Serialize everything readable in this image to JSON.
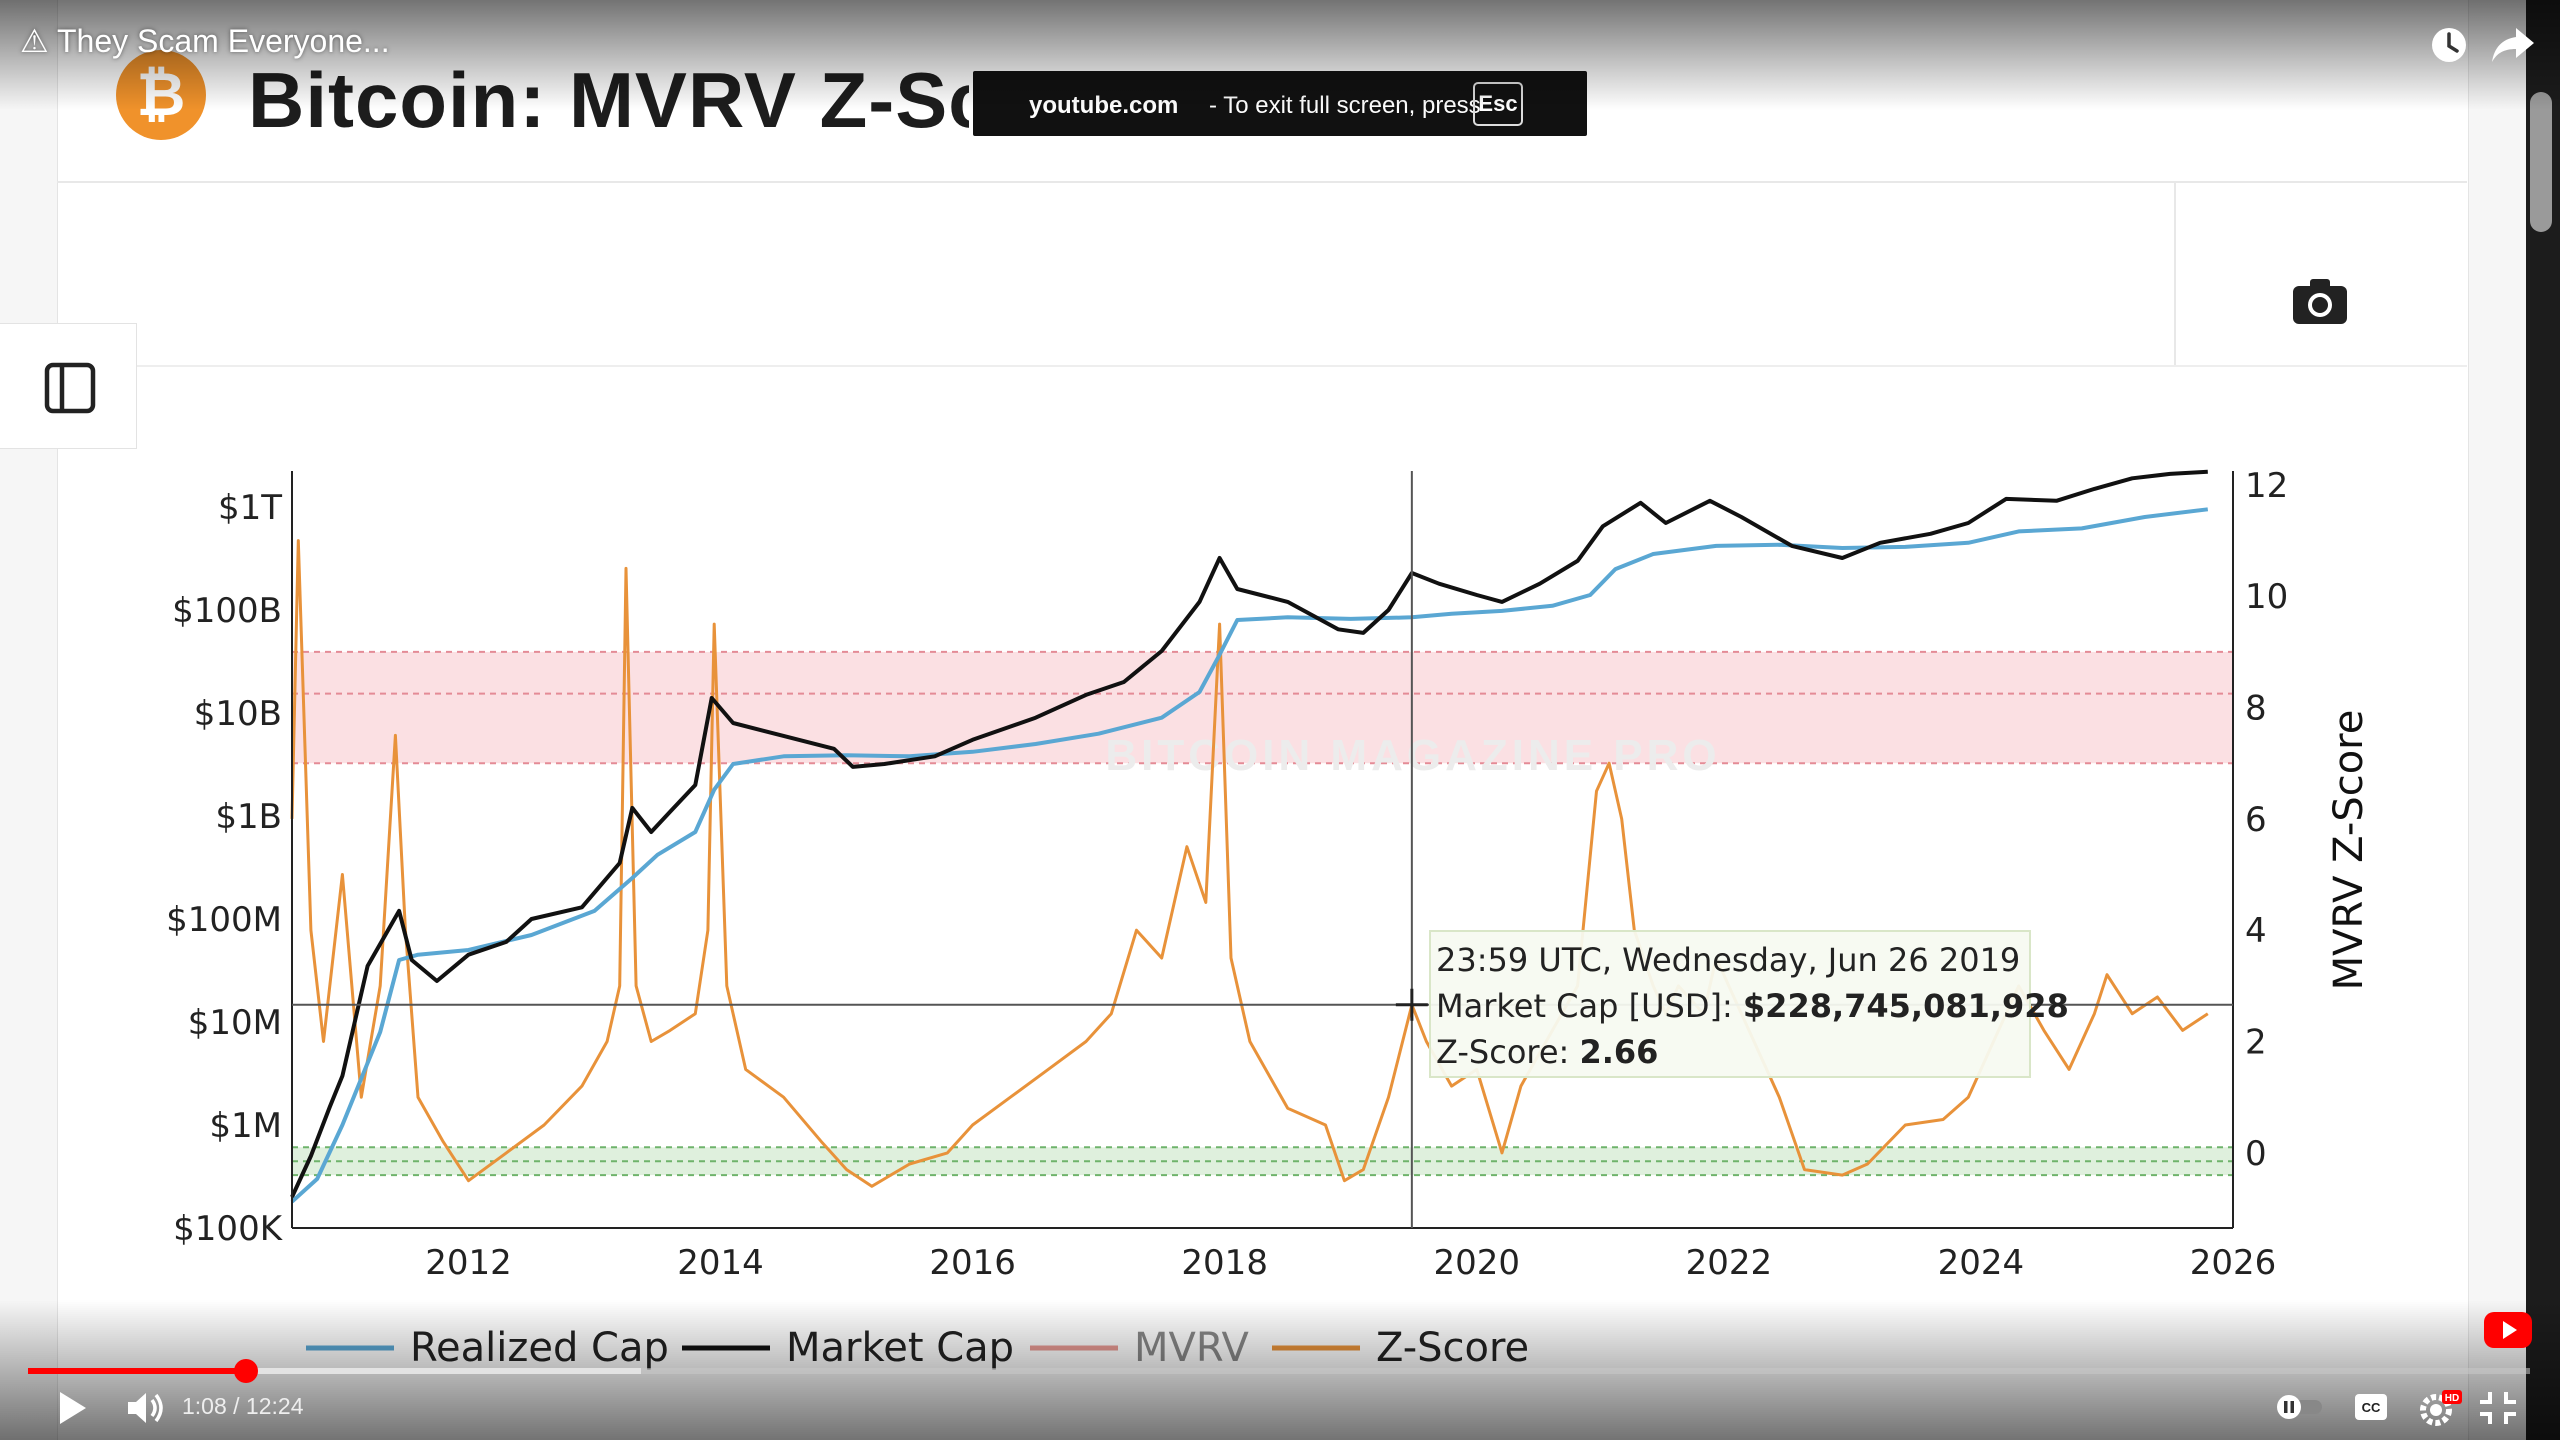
{
  "video": {
    "title_prefix": "⚠",
    "title": "They Scam Everyone...",
    "time": "1:08 / 12:24",
    "progress": 0.0872,
    "buffered": 0.245
  },
  "fullscreen_notice": {
    "host": "youtube.com",
    "message": "-  To exit full screen, press",
    "key": "Esc"
  },
  "page": {
    "logo_symbol": "₿",
    "title": "Bitcoin: MVRV Z-Sc"
  },
  "icons": {
    "camera": "camera-icon",
    "sidebar": "sidebar-toggle-icon",
    "watch_later": "clock-icon",
    "share": "share-icon",
    "play": "play-icon",
    "volume": "volume-icon",
    "autoplay": "autoplay-toggle-icon",
    "cc": "cc-icon",
    "settings": "gear-icon",
    "fullscreen": "exit-fullscreen-icon",
    "subscribe": "youtube-subscribe-icon"
  },
  "colors": {
    "realized_cap": "#5aa7d3",
    "market_cap": "#111111",
    "mvrv": "#e89a93",
    "zscore": "#e8923a",
    "red_band": "#fbe0e3",
    "green_band": "#a7d6a4",
    "yt_red": "#ff0000"
  },
  "chart_data": {
    "type": "line",
    "left_axis_label": "",
    "right_axis_label": "MVRV Z-Score",
    "left_axis_ticks": [
      "$100K",
      "$1M",
      "$10M",
      "$100M",
      "$1B",
      "$10B",
      "$100B",
      "$1T"
    ],
    "left_axis_values": [
      100000,
      1000000,
      10000000,
      100000000,
      1000000000,
      10000000000,
      100000000000,
      1000000000000
    ],
    "right_axis_ticks": [
      "0",
      "2",
      "4",
      "6",
      "8",
      "10",
      "12"
    ],
    "right_axis_values": [
      0,
      2,
      4,
      6,
      8,
      10,
      12
    ],
    "x_axis_ticks": [
      "2012",
      "2014",
      "2016",
      "2018",
      "2020",
      "2022",
      "2024",
      "2026"
    ],
    "x_axis_values": [
      2012,
      2014,
      2016,
      2018,
      2020,
      2022,
      2024,
      2026
    ],
    "xlim": [
      2010.6,
      2026
    ],
    "ylim_log10": [
      5,
      12.35
    ],
    "ylim_right": [
      -1.35,
      12.25
    ],
    "red_band_zscore": [
      7,
      9
    ],
    "red_band_dashed_lines": [
      7,
      8.25,
      9
    ],
    "green_band_zscore": [
      -0.4,
      0.1
    ],
    "green_band_dashed_lines": [
      -0.4,
      -0.15,
      0.1
    ],
    "watermark": "BITCOIN MAGAZINE PRO",
    "crosshair": {
      "date": 2019.485,
      "zscore": 2.66
    },
    "tooltip": {
      "date": "23:59 UTC, Wednesday, Jun 26 2019",
      "market_cap_label": "Market Cap [USD]:",
      "market_cap_value": "$228,745,081,928",
      "zscore_label": "Z-Score:",
      "zscore_value": "2.66"
    },
    "legend": [
      "Realized Cap",
      "Market Cap",
      "MVRV",
      "Z-Score"
    ],
    "series": [
      {
        "name": "Realized Cap",
        "axis": "left",
        "x": [
          2010.6,
          2010.8,
          2011.0,
          2011.3,
          2011.45,
          2011.6,
          2012.0,
          2012.5,
          2013.0,
          2013.3,
          2013.5,
          2013.8,
          2013.95,
          2014.1,
          2014.5,
          2015.0,
          2015.5,
          2016.0,
          2016.5,
          2017.0,
          2017.5,
          2017.8,
          2017.95,
          2018.1,
          2018.5,
          2019.0,
          2019.485,
          2019.8,
          2020.2,
          2020.6,
          2020.9,
          2021.1,
          2021.4,
          2021.9,
          2022.4,
          2022.9,
          2023.4,
          2023.9,
          2024.3,
          2024.8,
          2025.3,
          2025.8
        ],
        "y": [
          180000,
          300000,
          1000000,
          8000000,
          40000000,
          45000000,
          50000000,
          70000000,
          120000000,
          250000000,
          420000000,
          700000000,
          1800000000,
          3200000000,
          3800000000,
          3900000000,
          3800000000,
          4200000000,
          5000000000,
          6300000000,
          9000000000,
          16000000000,
          35000000000,
          80000000000,
          85000000000,
          82000000000,
          85000000000,
          92000000000,
          98000000000,
          110000000000,
          140000000000,
          250000000000,
          350000000000,
          420000000000,
          430000000000,
          400000000000,
          410000000000,
          450000000000,
          580000000000,
          620000000000,
          800000000000,
          950000000000
        ]
      },
      {
        "name": "Market Cap",
        "axis": "left",
        "x": [
          2010.6,
          2010.75,
          2010.9,
          2011.0,
          2011.2,
          2011.45,
          2011.55,
          2011.75,
          2012.0,
          2012.3,
          2012.5,
          2012.9,
          2013.2,
          2013.3,
          2013.45,
          2013.6,
          2013.8,
          2013.93,
          2014.1,
          2014.5,
          2014.9,
          2015.05,
          2015.3,
          2015.7,
          2016.0,
          2016.5,
          2016.9,
          2017.2,
          2017.5,
          2017.8,
          2017.96,
          2018.1,
          2018.5,
          2018.9,
          2019.1,
          2019.3,
          2019.485,
          2019.7,
          2020.0,
          2020.2,
          2020.5,
          2020.8,
          2021.0,
          2021.3,
          2021.5,
          2021.85,
          2022.1,
          2022.5,
          2022.9,
          2023.2,
          2023.6,
          2023.9,
          2024.2,
          2024.6,
          2024.9,
          2025.2,
          2025.5,
          2025.8
        ],
        "y": [
          200000,
          500000,
          1500000,
          3000000,
          35000000,
          120000000,
          40000000,
          25000000,
          45000000,
          60000000,
          100000000,
          130000000,
          350000000,
          1200000000,
          700000000,
          1100000000,
          2000000000,
          14000000000,
          8000000000,
          6000000000,
          4500000000,
          3000000000,
          3200000000,
          3800000000,
          5500000000,
          9000000000,
          15000000000,
          20000000000,
          40000000000,
          120000000000,
          320000000000,
          160000000000,
          120000000000,
          65000000000,
          60000000000,
          100000000000,
          228745081928,
          180000000000,
          140000000000,
          120000000000,
          180000000000,
          300000000000,
          650000000000,
          1100000000000,
          700000000000,
          1150000000000,
          800000000000,
          420000000000,
          320000000000,
          450000000000,
          550000000000,
          700000000000,
          1200000000000,
          1150000000000,
          1500000000000,
          1900000000000,
          2100000000000,
          2200000000000
        ]
      },
      {
        "name": "Z-Score",
        "axis": "right",
        "x": [
          2010.6,
          2010.65,
          2010.75,
          2010.85,
          2011.0,
          2011.15,
          2011.3,
          2011.42,
          2011.5,
          2011.6,
          2011.8,
          2012.0,
          2012.3,
          2012.6,
          2012.9,
          2013.1,
          2013.2,
          2013.25,
          2013.33,
          2013.45,
          2013.6,
          2013.8,
          2013.9,
          2013.95,
          2014.05,
          2014.2,
          2014.5,
          2014.8,
          2015.0,
          2015.2,
          2015.5,
          2015.8,
          2016.0,
          2016.3,
          2016.6,
          2016.9,
          2017.1,
          2017.3,
          2017.5,
          2017.7,
          2017.85,
          2017.96,
          2018.05,
          2018.2,
          2018.5,
          2018.8,
          2018.95,
          2019.1,
          2019.3,
          2019.485,
          2019.6,
          2019.8,
          2020.0,
          2020.2,
          2020.35,
          2020.6,
          2020.8,
          2020.95,
          2021.05,
          2021.15,
          2021.25,
          2021.4,
          2021.5,
          2021.6,
          2021.8,
          2021.9,
          2022.1,
          2022.4,
          2022.6,
          2022.9,
          2023.1,
          2023.4,
          2023.7,
          2023.9,
          2024.2,
          2024.3,
          2024.5,
          2024.7,
          2024.9,
          2025.0,
          2025.2,
          2025.4,
          2025.6,
          2025.8
        ],
        "y": [
          6.0,
          11.0,
          4.0,
          2.0,
          5.0,
          1.0,
          3.0,
          7.5,
          4.0,
          1.0,
          0.2,
          -0.5,
          0.0,
          0.5,
          1.2,
          2.0,
          3.0,
          10.5,
          3.0,
          2.0,
          2.2,
          2.5,
          4.0,
          9.5,
          3.0,
          1.5,
          1.0,
          0.2,
          -0.3,
          -0.6,
          -0.2,
          0.0,
          0.5,
          1.0,
          1.5,
          2.0,
          2.5,
          4.0,
          3.5,
          5.5,
          4.5,
          9.5,
          3.5,
          2.0,
          0.8,
          0.5,
          -0.5,
          -0.3,
          1.0,
          2.66,
          2.0,
          1.2,
          1.5,
          0.0,
          1.2,
          2.2,
          3.0,
          6.5,
          7.0,
          6.0,
          4.0,
          3.0,
          2.5,
          3.0,
          2.5,
          3.5,
          2.5,
          1.0,
          -0.3,
          -0.4,
          -0.2,
          0.5,
          0.6,
          1.0,
          2.5,
          3.0,
          2.2,
          1.5,
          2.5,
          3.2,
          2.5,
          2.8,
          2.2,
          2.5
        ]
      }
    ]
  }
}
